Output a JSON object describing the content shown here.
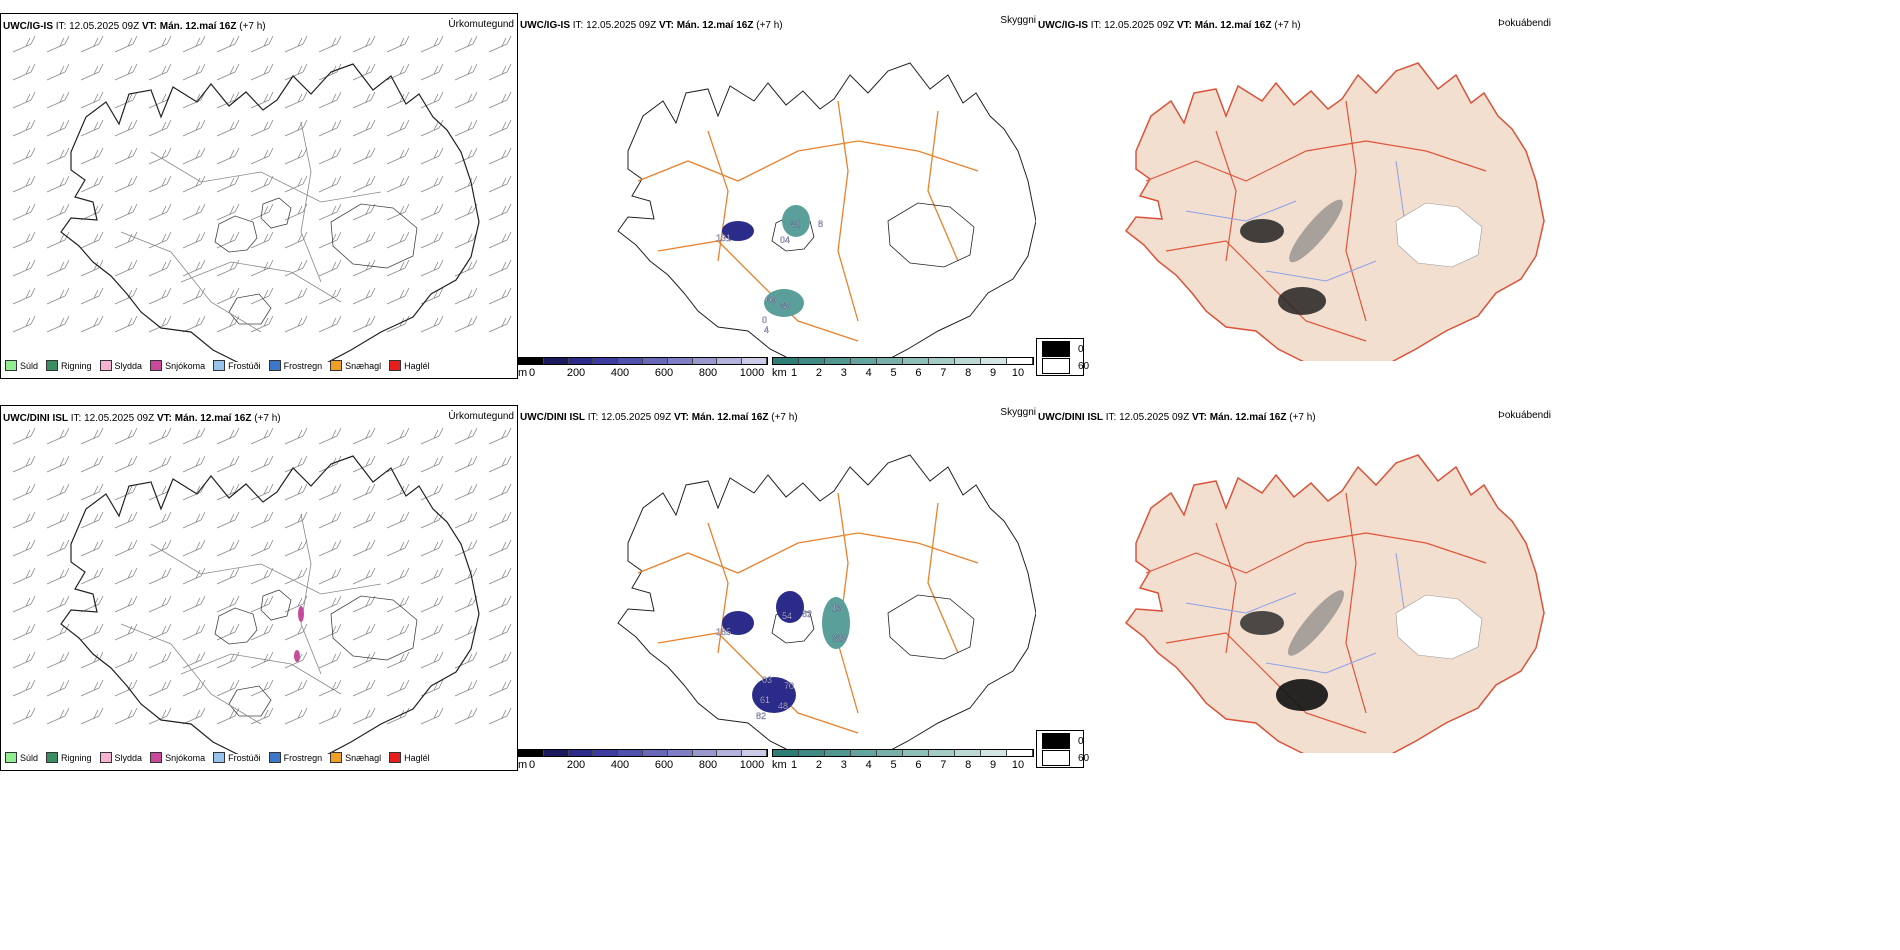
{
  "legend_items": [
    {
      "label": "Súld",
      "color": "#90ee90"
    },
    {
      "label": "Rigning",
      "color": "#3c8c64"
    },
    {
      "label": "Slydda",
      "color": "#f5b4d2"
    },
    {
      "label": "Snjókoma",
      "color": "#c84b9b"
    },
    {
      "label": "Frostúði",
      "color": "#96c3eb"
    },
    {
      "label": "Frostregn",
      "color": "#3c78c8"
    },
    {
      "label": "Snæhagl",
      "color": "#f0a028"
    },
    {
      "label": "Haglél",
      "color": "#e61e1e"
    }
  ],
  "rows": [
    {
      "model": "UWC/IG-IS",
      "it_label": "IT:",
      "it_value": "12.05.2025 09Z",
      "vt_label": "VT:",
      "vt_value": "Mán. 12.maí 16Z",
      "lead": "(+7 h)",
      "precip_label": "Úrkomutegund",
      "vis_label": "Skyggni",
      "fog_label": "Þokuábendi",
      "cloud_numbers": [
        "131",
        "42",
        "04",
        "8",
        "09",
        "68",
        "0",
        "4"
      ]
    },
    {
      "model": "UWC/DINI ISL",
      "it_label": "IT:",
      "it_value": "12.05.2025 09Z",
      "vt_label": "VT:",
      "vt_value": "Mán. 12.maí 16Z",
      "lead": "(+7 h)",
      "precip_label": "Úrkomutegund",
      "vis_label": "Skyggni",
      "fog_label": "Þokuábendi",
      "cloud_numbers": [
        "185",
        "54",
        "82",
        "16",
        "328",
        "03",
        "70",
        "61",
        "48",
        "82"
      ]
    }
  ],
  "cbar_m": {
    "unit": "m",
    "ticks": [
      "0",
      "200",
      "400",
      "600",
      "800",
      "1000"
    ],
    "colors": [
      "#000000",
      "#1a1a5e",
      "#2b2b8a",
      "#3c3ca0",
      "#5050ad",
      "#6868b8",
      "#7e7ec4",
      "#9898cf",
      "#b2b2dc",
      "#cbcbe8"
    ]
  },
  "cbar_km": {
    "unit": "km",
    "ticks": [
      "1",
      "2",
      "3",
      "4",
      "5",
      "6",
      "7",
      "8",
      "9",
      "10"
    ],
    "colors": [
      "#2e7d76",
      "#3f8a84",
      "#519790",
      "#64a49e",
      "#78b1ab",
      "#8dbfb9",
      "#a3ccc7",
      "#bad9d5",
      "#d1e6e3",
      "#ffffff"
    ]
  },
  "vis_legend": {
    "dark": "0",
    "light": "60"
  }
}
